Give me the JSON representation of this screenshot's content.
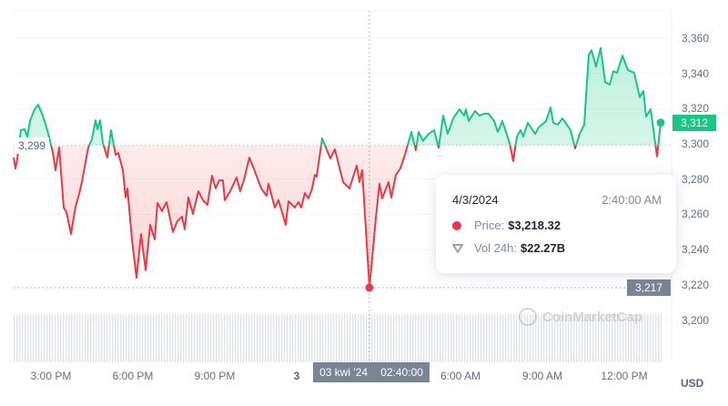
{
  "chart_data": {
    "type": "area",
    "currency_label": "USD",
    "reference_value": 3299,
    "reference_label": "3,299",
    "current_value_label": "3,312",
    "hover_value_label": "3,217",
    "ylim": [
      3180,
      3370
    ],
    "y_ticks": [
      "3,360",
      "3,340",
      "3,320",
      "3,300",
      "3,280",
      "3,260",
      "3,240",
      "3,220",
      "3,200"
    ],
    "y_tick_values": [
      3360,
      3340,
      3320,
      3300,
      3280,
      3260,
      3240,
      3220,
      3200
    ],
    "x_ticks": [
      {
        "label": "3:00 PM",
        "time": "2024-04-02T15:00"
      },
      {
        "label": "6:00 PM",
        "time": "2024-04-02T18:00"
      },
      {
        "label": "9:00 PM",
        "time": "2024-04-02T21:00"
      },
      {
        "label": "3",
        "time": "2024-04-03T00:00"
      },
      {
        "label": "6:00 AM",
        "time": "2024-04-03T06:00"
      },
      {
        "label": "9:00 AM",
        "time": "2024-04-03T09:00"
      },
      {
        "label": "12:00 PM",
        "time": "2024-04-03T12:00"
      }
    ],
    "colors": {
      "up": "#16c784",
      "down": "#ea3943",
      "axis_badge": "#7b8494"
    },
    "grid": true,
    "points": [
      [
        "2024-04-02T13:38",
        3292.2
      ],
      [
        "2024-04-02T13:42",
        3286.0
      ],
      [
        "2024-04-02T13:46",
        3291.2
      ],
      [
        "2024-04-02T13:52",
        3304.1
      ],
      [
        "2024-04-02T13:54",
        3307.8
      ],
      [
        "2024-04-02T14:02",
        3308.3
      ],
      [
        "2024-04-02T14:08",
        3304.1
      ],
      [
        "2024-04-02T14:14",
        3312.9
      ],
      [
        "2024-04-02T14:24",
        3319.6
      ],
      [
        "2024-04-02T14:32",
        3322.2
      ],
      [
        "2024-04-02T14:42",
        3316.0
      ],
      [
        "2024-04-02T14:52",
        3307.8
      ],
      [
        "2024-04-02T14:58",
        3301.6
      ],
      [
        "2024-04-02T15:04",
        3295.3
      ],
      [
        "2024-04-02T15:10",
        3285.0
      ],
      [
        "2024-04-02T15:18",
        3297.9
      ],
      [
        "2024-04-02T15:28",
        3263.8
      ],
      [
        "2024-04-02T15:34",
        3261.2
      ],
      [
        "2024-04-02T15:44",
        3248.8
      ],
      [
        "2024-04-02T15:54",
        3264.3
      ],
      [
        "2024-04-02T16:02",
        3271.6
      ],
      [
        "2024-04-02T16:08",
        3278.3
      ],
      [
        "2024-04-02T16:22",
        3297.9
      ],
      [
        "2024-04-02T16:30",
        3302.6
      ],
      [
        "2024-04-02T16:38",
        3313.4
      ],
      [
        "2024-04-02T16:42",
        3308.3
      ],
      [
        "2024-04-02T16:48",
        3313.4
      ],
      [
        "2024-04-02T16:54",
        3300.5
      ],
      [
        "2024-04-02T17:04",
        3292.2
      ],
      [
        "2024-04-02T17:12",
        3307.8
      ],
      [
        "2024-04-02T17:22",
        3293.8
      ],
      [
        "2024-04-02T17:28",
        3294.8
      ],
      [
        "2024-04-02T17:38",
        3285.0
      ],
      [
        "2024-04-02T17:44",
        3269.5
      ],
      [
        "2024-04-02T17:48",
        3274.7
      ],
      [
        "2024-04-02T17:58",
        3245.7
      ],
      [
        "2024-04-02T18:08",
        3224.0
      ],
      [
        "2024-04-02T18:18",
        3248.8
      ],
      [
        "2024-04-02T18:28",
        3228.2
      ],
      [
        "2024-04-02T18:38",
        3254.0
      ],
      [
        "2024-04-02T18:48",
        3245.7
      ],
      [
        "2024-04-02T18:54",
        3266.4
      ],
      [
        "2024-04-02T19:04",
        3261.8
      ],
      [
        "2024-04-02T19:14",
        3266.9
      ],
      [
        "2024-04-02T19:28",
        3249.9
      ],
      [
        "2024-04-02T19:38",
        3256.1
      ],
      [
        "2024-04-02T19:48",
        3258.7
      ],
      [
        "2024-04-02T19:54",
        3251.5
      ],
      [
        "2024-04-02T20:02",
        3269.5
      ],
      [
        "2024-04-02T20:12",
        3260.2
      ],
      [
        "2024-04-02T20:24",
        3273.1
      ],
      [
        "2024-04-02T20:34",
        3268.0
      ],
      [
        "2024-04-02T20:44",
        3265.4
      ],
      [
        "2024-04-02T20:54",
        3281.9
      ],
      [
        "2024-04-02T21:02",
        3274.7
      ],
      [
        "2024-04-02T21:10",
        3279.3
      ],
      [
        "2024-04-02T21:18",
        3279.3
      ],
      [
        "2024-04-02T21:22",
        3268.0
      ],
      [
        "2024-04-02T21:34",
        3273.1
      ],
      [
        "2024-04-02T21:48",
        3280.9
      ],
      [
        "2024-04-02T21:56",
        3273.1
      ],
      [
        "2024-04-02T22:04",
        3279.3
      ],
      [
        "2024-04-02T22:16",
        3292.2
      ],
      [
        "2024-04-02T22:28",
        3284.5
      ],
      [
        "2024-04-02T22:42",
        3274.7
      ],
      [
        "2024-04-02T22:54",
        3270.5
      ],
      [
        "2024-04-02T22:58",
        3277.3
      ],
      [
        "2024-04-02T23:12",
        3263.8
      ],
      [
        "2024-04-02T23:20",
        3268.0
      ],
      [
        "2024-04-02T23:36",
        3254.0
      ],
      [
        "2024-04-02T23:42",
        3267.4
      ],
      [
        "2024-04-02T23:56",
        3263.8
      ],
      [
        "2024-04-03T00:04",
        3266.9
      ],
      [
        "2024-04-03T00:10",
        3263.8
      ],
      [
        "2024-04-03T00:18",
        3272.1
      ],
      [
        "2024-04-03T00:26",
        3269.0
      ],
      [
        "2024-04-03T00:34",
        3274.7
      ],
      [
        "2024-04-03T00:40",
        3282.4
      ],
      [
        "2024-04-03T00:44",
        3281.4
      ],
      [
        "2024-04-03T00:56",
        3303.1
      ],
      [
        "2024-04-03T01:14",
        3291.7
      ],
      [
        "2024-04-03T01:24",
        3296.9
      ],
      [
        "2024-04-03T01:42",
        3278.3
      ],
      [
        "2024-04-03T01:56",
        3274.7
      ],
      [
        "2024-04-03T02:12",
        3287.6
      ],
      [
        "2024-04-03T02:18",
        3278.3
      ],
      [
        "2024-04-03T02:24",
        3285.0
      ],
      [
        "2024-04-03T02:40",
        3218.3
      ],
      [
        "2024-04-03T02:54",
        3257.6
      ],
      [
        "2024-04-03T03:02",
        3277.3
      ],
      [
        "2024-04-03T03:08",
        3269.0
      ],
      [
        "2024-04-03T03:22",
        3278.3
      ],
      [
        "2024-04-03T03:28",
        3269.5
      ],
      [
        "2024-04-03T03:38",
        3282.4
      ],
      [
        "2024-04-03T03:48",
        3286.0
      ],
      [
        "2024-04-03T03:58",
        3293.8
      ],
      [
        "2024-04-03T04:12",
        3306.7
      ],
      [
        "2024-04-03T04:22",
        3296.4
      ],
      [
        "2024-04-03T04:28",
        3306.7
      ],
      [
        "2024-04-03T04:38",
        3301.6
      ],
      [
        "2024-04-03T04:48",
        3305.2
      ],
      [
        "2024-04-03T05:02",
        3307.8
      ],
      [
        "2024-04-03T05:12",
        3297.9
      ],
      [
        "2024-04-03T05:22",
        3316.0
      ],
      [
        "2024-04-03T05:32",
        3305.7
      ],
      [
        "2024-04-03T05:44",
        3314.5
      ],
      [
        "2024-04-03T05:58",
        3319.6
      ],
      [
        "2024-04-03T06:08",
        3316.0
      ],
      [
        "2024-04-03T06:12",
        3319.6
      ],
      [
        "2024-04-03T06:18",
        3312.9
      ],
      [
        "2024-04-03T06:32",
        3318.6
      ],
      [
        "2024-04-03T06:42",
        3316.0
      ],
      [
        "2024-04-03T06:52",
        3317.1
      ],
      [
        "2024-04-03T07:02",
        3317.1
      ],
      [
        "2024-04-03T07:14",
        3312.9
      ],
      [
        "2024-04-03T07:22",
        3306.7
      ],
      [
        "2024-04-03T07:32",
        3312.9
      ],
      [
        "2024-04-03T07:48",
        3300.5
      ],
      [
        "2024-04-03T07:56",
        3290.2
      ],
      [
        "2024-04-03T08:04",
        3304.1
      ],
      [
        "2024-04-03T08:12",
        3307.8
      ],
      [
        "2024-04-03T08:18",
        3304.1
      ],
      [
        "2024-04-03T08:28",
        3311.9
      ],
      [
        "2024-04-03T08:44",
        3305.7
      ],
      [
        "2024-04-03T08:52",
        3309.3
      ],
      [
        "2024-04-03T09:08",
        3312.9
      ],
      [
        "2024-04-03T09:18",
        3320.7
      ],
      [
        "2024-04-03T09:24",
        3311.9
      ],
      [
        "2024-04-03T09:34",
        3310.9
      ],
      [
        "2024-04-03T09:44",
        3314.5
      ],
      [
        "2024-04-03T10:02",
        3307.8
      ],
      [
        "2024-04-03T10:12",
        3297.4
      ],
      [
        "2024-04-03T10:22",
        3305.7
      ],
      [
        "2024-04-03T10:32",
        3310.9
      ],
      [
        "2024-04-03T10:42",
        3350.6
      ],
      [
        "2024-04-03T10:48",
        3353.2
      ],
      [
        "2024-04-03T10:58",
        3343.9
      ],
      [
        "2024-04-03T11:08",
        3354.3
      ],
      [
        "2024-04-03T11:18",
        3335.1
      ],
      [
        "2024-04-03T11:28",
        3333.6
      ],
      [
        "2024-04-03T11:36",
        3341.3
      ],
      [
        "2024-04-03T11:44",
        3340.3
      ],
      [
        "2024-04-03T11:56",
        3350.1
      ],
      [
        "2024-04-03T12:08",
        3341.9
      ],
      [
        "2024-04-03T12:22",
        3340.3
      ],
      [
        "2024-04-03T12:34",
        3326.4
      ],
      [
        "2024-04-03T12:42",
        3330.0
      ],
      [
        "2024-04-03T12:48",
        3315.5
      ],
      [
        "2024-04-03T12:58",
        3319.6
      ],
      [
        "2024-04-03T13:12",
        3292.8
      ],
      [
        "2024-04-03T13:20",
        3312.0
      ]
    ],
    "hover": {
      "time": "2024-04-03T02:40",
      "value": 3218.32
    }
  },
  "crosshair": {
    "date_label": "03 kwi '24",
    "time_label": "02:40:00"
  },
  "tooltip": {
    "date": "4/3/2024",
    "time": "2:40:00 AM",
    "price_label": "Price:",
    "price_value": "$3,218.32",
    "volume_label": "Vol 24h:",
    "volume_value": "$22.27B",
    "price_icon": "red-dot",
    "volume_icon": "volume-shield-icon"
  },
  "watermark": "CoinMarketCap"
}
